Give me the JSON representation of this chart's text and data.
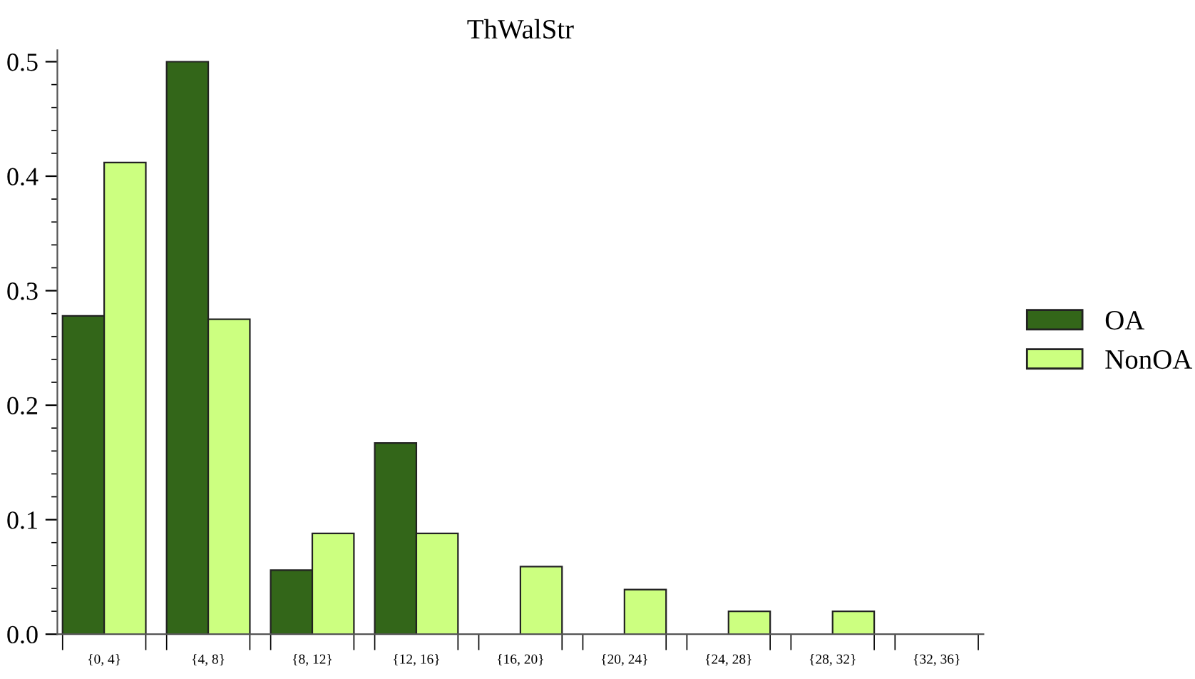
{
  "chart_data": {
    "type": "bar",
    "title": "ThWalStr",
    "categories": [
      "{0, 4}",
      "{4, 8}",
      "{8, 12}",
      "{12, 16}",
      "{16, 20}",
      "{20, 24}",
      "{24, 28}",
      "{28, 32}",
      "{32, 36}"
    ],
    "series": [
      {
        "name": "OA",
        "color": "#336619",
        "values": [
          0.278,
          0.5,
          0.056,
          0.167,
          0,
          0,
          0,
          0,
          0
        ]
      },
      {
        "name": "NonOA",
        "color": "#ccff80",
        "values": [
          0.412,
          0.275,
          0.088,
          0.088,
          0.059,
          0.039,
          0.02,
          0.02,
          0
        ]
      }
    ],
    "ylim": [
      0,
      0.51
    ],
    "yticks": [
      {
        "value": 0,
        "label": "0.0"
      },
      0.1,
      0.2,
      0.3,
      0.4,
      0.5
    ],
    "grid": false,
    "legend": "right"
  }
}
